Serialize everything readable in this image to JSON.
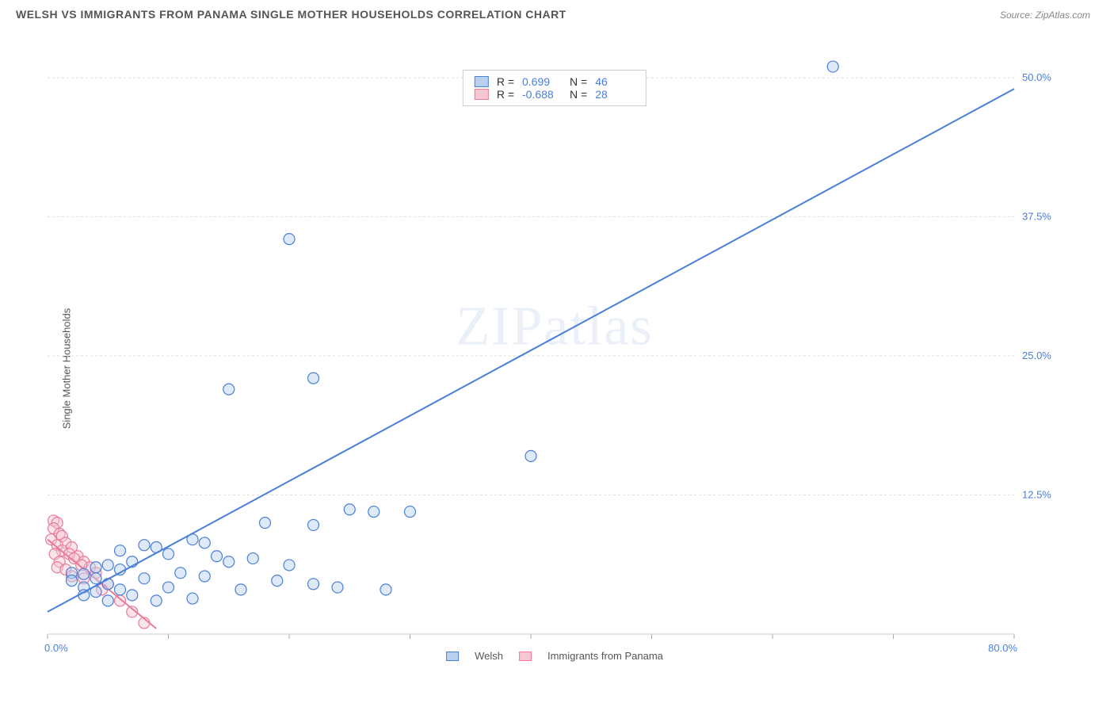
{
  "title": "WELSH VS IMMIGRANTS FROM PANAMA SINGLE MOTHER HOUSEHOLDS CORRELATION CHART",
  "source": "Source: ZipAtlas.com",
  "ylabel": "Single Mother Households",
  "watermark": "ZIPatlas",
  "chart": {
    "type": "scatter",
    "background_color": "#ffffff",
    "grid_color": "#dddddd",
    "xlim": [
      0,
      80
    ],
    "ylim": [
      0,
      52
    ],
    "xtick_start": "0.0%",
    "xtick_end": "80.0%",
    "xtick_positions": [
      0,
      10,
      20,
      30,
      40,
      50,
      60,
      70,
      80
    ],
    "ytick_labels": [
      "12.5%",
      "25.0%",
      "37.5%",
      "50.0%"
    ],
    "ytick_values": [
      12.5,
      25.0,
      37.5,
      50.0
    ],
    "marker_radius": 7,
    "marker_stroke_width": 1.2,
    "marker_fill_opacity": 0.45,
    "line_width": 2
  },
  "legend_top": [
    {
      "swatch_fill": "#b9d0ef",
      "swatch_stroke": "#4a7fd8",
      "r_label": "R =",
      "r_value": "0.699",
      "n_label": "N =",
      "n_value": "46"
    },
    {
      "swatch_fill": "#f6c6d3",
      "swatch_stroke": "#e87a9a",
      "r_label": "R =",
      "r_value": "-0.688",
      "n_label": "N =",
      "n_value": "28"
    }
  ],
  "legend_bottom": [
    {
      "swatch_fill": "#b9d0ef",
      "swatch_stroke": "#4a7fd8",
      "label": "Welsh"
    },
    {
      "swatch_fill": "#f6c6d3",
      "swatch_stroke": "#e87a9a",
      "label": "Immigrants from Panama"
    }
  ],
  "series": {
    "welsh": {
      "color_stroke": "#4a7fd8",
      "color_fill": "#b9d0ef",
      "trend": {
        "x1": 0,
        "y1": 2.0,
        "x2": 80,
        "y2": 49.0
      },
      "points": [
        [
          65,
          51
        ],
        [
          20,
          35.5
        ],
        [
          22,
          23
        ],
        [
          15,
          22
        ],
        [
          40,
          16
        ],
        [
          25,
          11.2
        ],
        [
          27,
          11
        ],
        [
          30,
          11
        ],
        [
          18,
          10
        ],
        [
          22,
          9.8
        ],
        [
          12,
          8.5
        ],
        [
          13,
          8.2
        ],
        [
          8,
          8
        ],
        [
          9,
          7.8
        ],
        [
          6,
          7.5
        ],
        [
          10,
          7.2
        ],
        [
          14,
          7
        ],
        [
          17,
          6.8
        ],
        [
          15,
          6.5
        ],
        [
          20,
          6.2
        ],
        [
          4,
          6
        ],
        [
          5,
          6.2
        ],
        [
          7,
          6.5
        ],
        [
          6,
          5.8
        ],
        [
          11,
          5.5
        ],
        [
          13,
          5.2
        ],
        [
          8,
          5
        ],
        [
          3,
          5.4
        ],
        [
          4,
          5
        ],
        [
          2,
          5.5
        ],
        [
          19,
          4.8
        ],
        [
          22,
          4.5
        ],
        [
          24,
          4.2
        ],
        [
          16,
          4
        ],
        [
          10,
          4.2
        ],
        [
          28,
          4
        ],
        [
          2,
          4.8
        ],
        [
          5,
          4.5
        ],
        [
          6,
          4
        ],
        [
          3,
          4.2
        ],
        [
          4,
          3.8
        ],
        [
          12,
          3.2
        ],
        [
          7,
          3.5
        ],
        [
          9,
          3
        ],
        [
          3,
          3.5
        ],
        [
          5,
          3
        ]
      ]
    },
    "panama": {
      "color_stroke": "#e87a9a",
      "color_fill": "#f6c6d3",
      "trend": {
        "x1": 0,
        "y1": 8.5,
        "x2": 9,
        "y2": 0.5
      },
      "points": [
        [
          0.5,
          10.2
        ],
        [
          0.8,
          10
        ],
        [
          0.5,
          9.5
        ],
        [
          1,
          9
        ],
        [
          1.2,
          8.8
        ],
        [
          0.3,
          8.5
        ],
        [
          1.5,
          8.2
        ],
        [
          0.8,
          8
        ],
        [
          2,
          7.8
        ],
        [
          1.2,
          7.5
        ],
        [
          0.6,
          7.2
        ],
        [
          2.5,
          7
        ],
        [
          1.8,
          7.2
        ],
        [
          3,
          6.5
        ],
        [
          2.2,
          6.8
        ],
        [
          1,
          6.5
        ],
        [
          3.5,
          6
        ],
        [
          2.8,
          6.2
        ],
        [
          0.8,
          6
        ],
        [
          1.5,
          5.8
        ],
        [
          4,
          5.5
        ],
        [
          2,
          5.2
        ],
        [
          3,
          5
        ],
        [
          5,
          4.5
        ],
        [
          4.5,
          4
        ],
        [
          6,
          3
        ],
        [
          7,
          2
        ],
        [
          8,
          1
        ]
      ]
    }
  }
}
